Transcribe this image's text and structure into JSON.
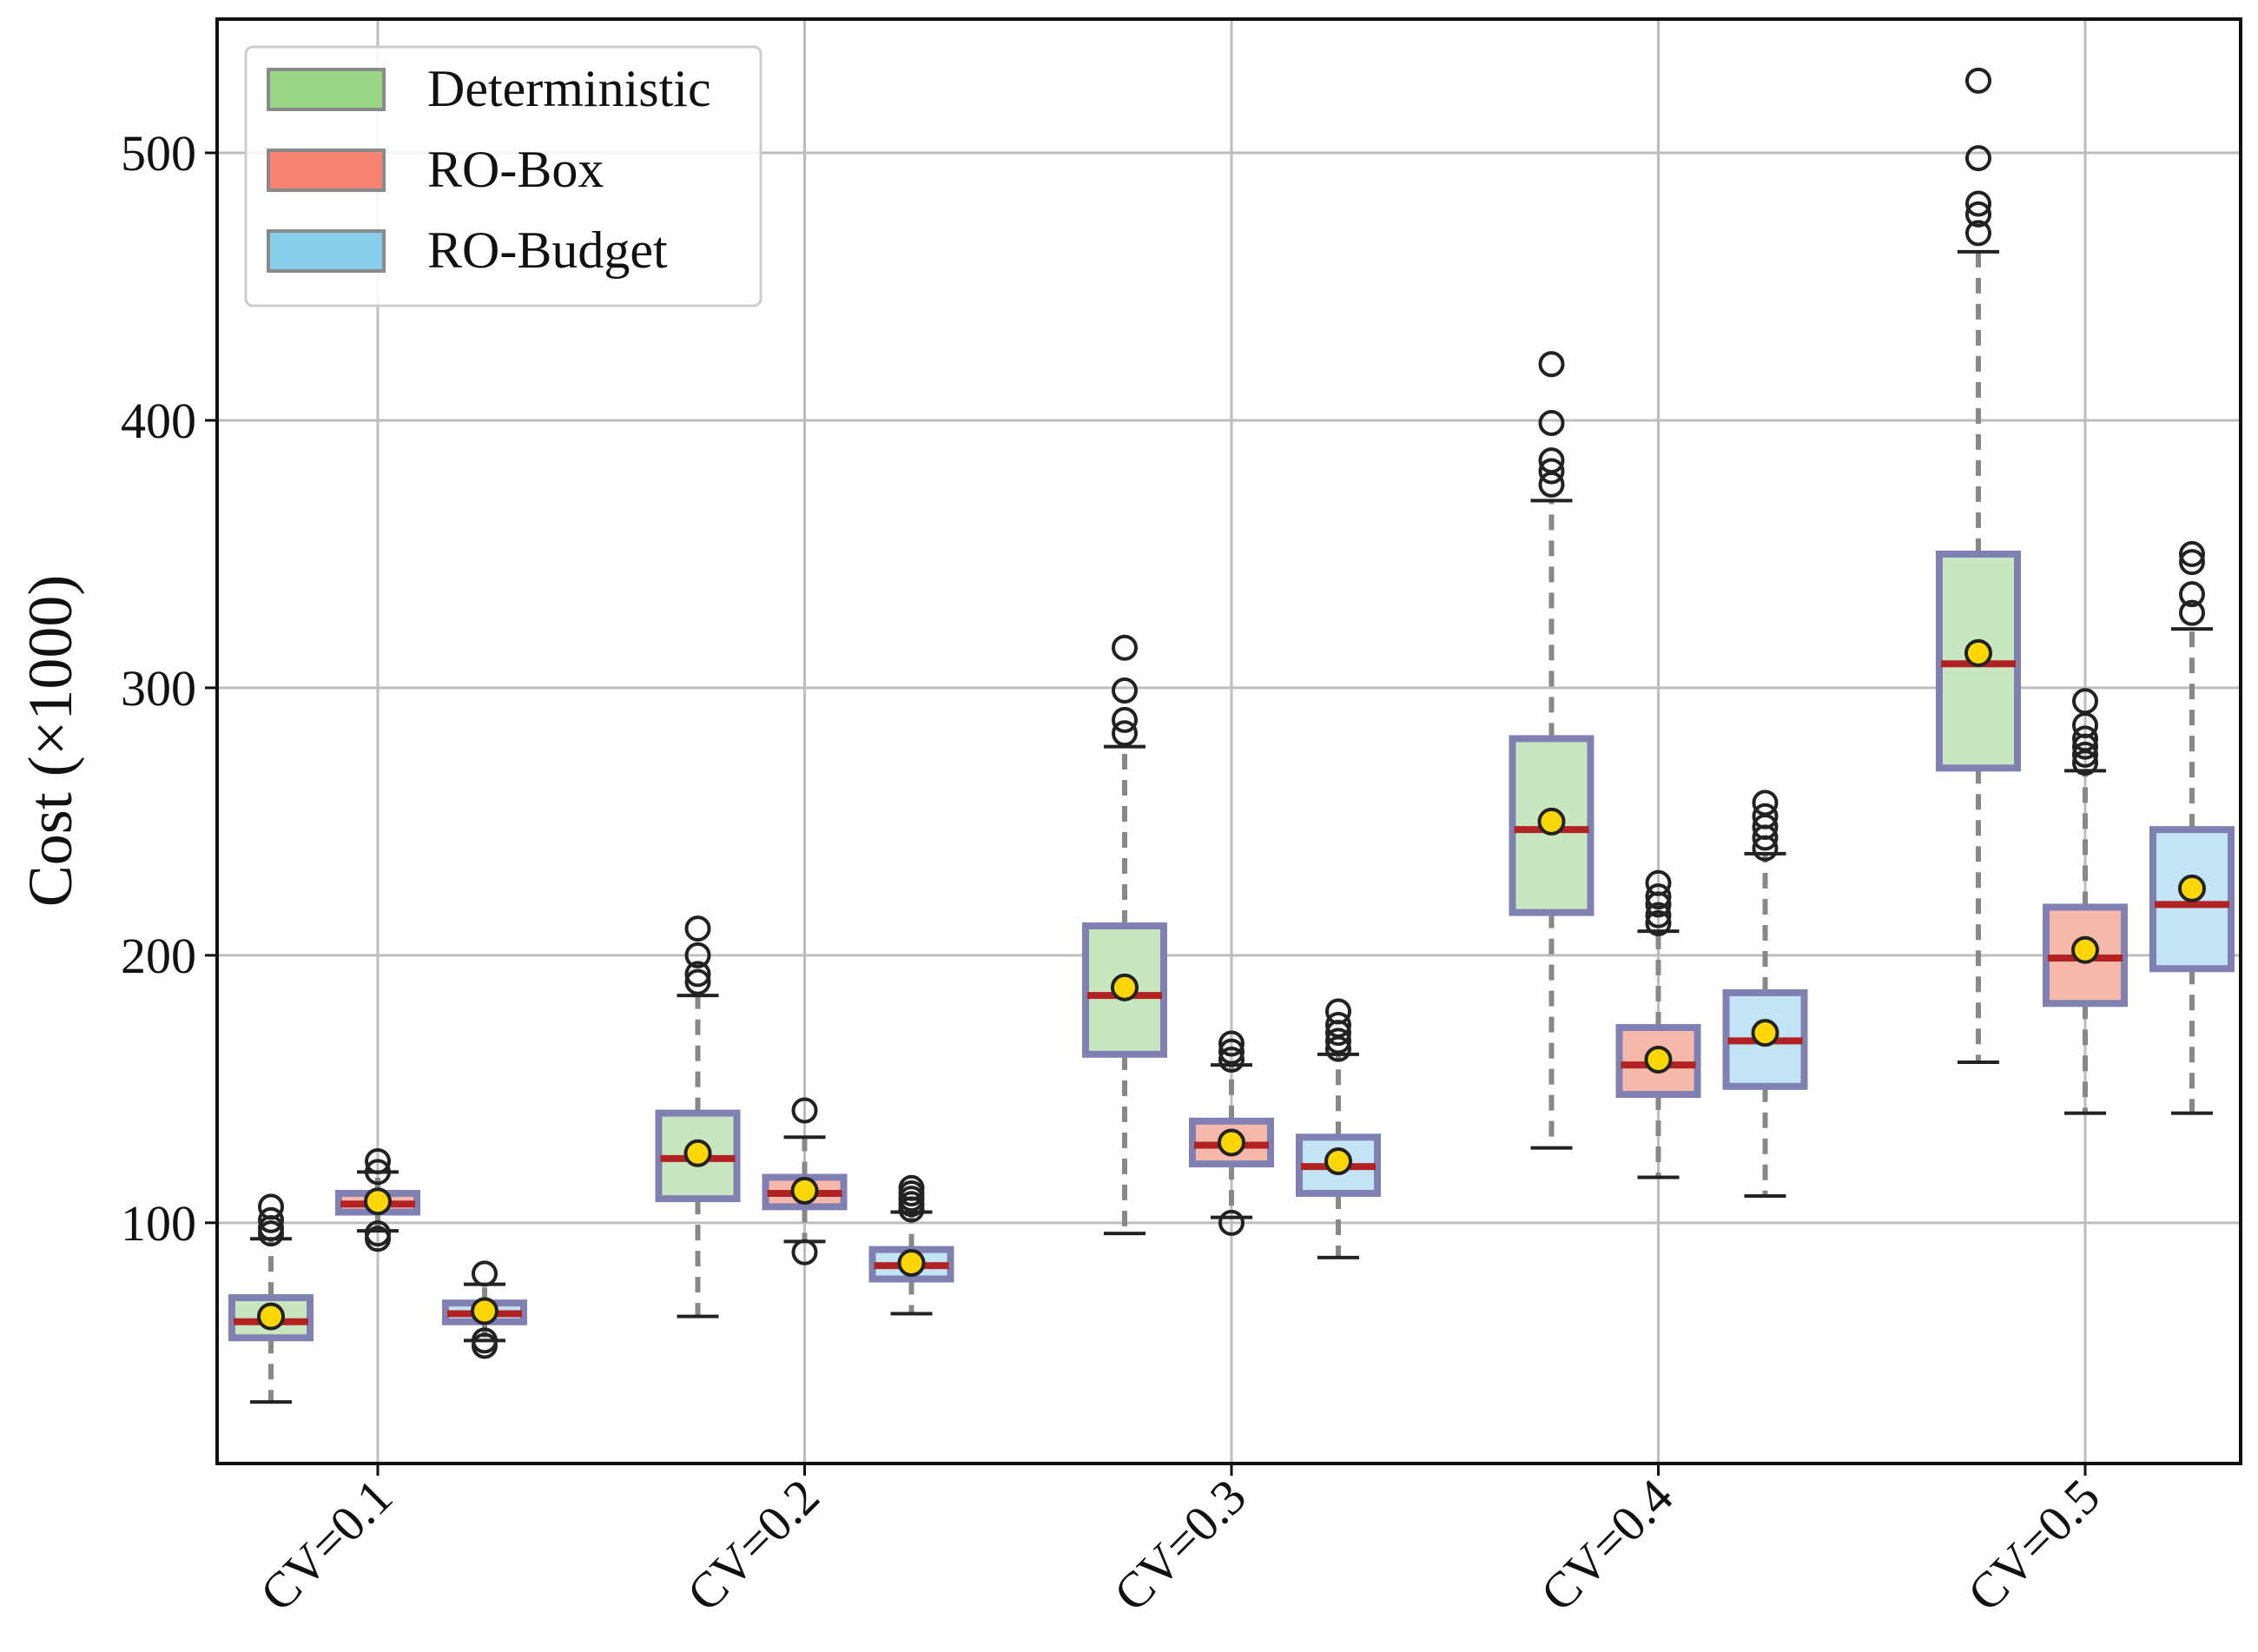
{
  "chart_data": {
    "type": "boxplot",
    "title": "",
    "xlabel": "",
    "ylabel": "Cost (×1000)",
    "ylim": [
      10,
      550
    ],
    "yticks": [
      100,
      200,
      300,
      400,
      500
    ],
    "categories": [
      "CV=0.1",
      "CV=0.2",
      "CV=0.3",
      "CV=0.4",
      "CV=0.5"
    ],
    "grid": true,
    "legend_position": "top-left",
    "colors": {
      "box_edge": "#8080b3",
      "median": "#b22222",
      "mean_marker": "#ffd700",
      "whisker": "#888888",
      "cap": "#222222",
      "grid": "#bdbdbd"
    },
    "series": [
      {
        "name": "Deterministic",
        "fill": "#c8e6c0",
        "legend_fill": "#9ad485",
        "boxes": [
          {
            "category": "CV=0.1",
            "whislo": 33,
            "q1": 57,
            "med": 63,
            "q3": 72,
            "whishi": 94,
            "mean": 65,
            "fliers": [
              96,
              98,
              101,
              106
            ]
          },
          {
            "category": "CV=0.2",
            "whislo": 65,
            "q1": 109,
            "med": 124,
            "q3": 141,
            "whishi": 185,
            "mean": 126,
            "fliers": [
              190,
              193,
              200,
              210
            ]
          },
          {
            "category": "CV=0.3",
            "whislo": 96,
            "q1": 163,
            "med": 185,
            "q3": 211,
            "whishi": 278,
            "mean": 188,
            "fliers": [
              283,
              288,
              299,
              315
            ]
          },
          {
            "category": "CV=0.4",
            "whislo": 128,
            "q1": 216,
            "med": 247,
            "q3": 281,
            "whishi": 370,
            "mean": 250,
            "fliers": [
              376,
              381,
              385,
              399,
              421
            ]
          },
          {
            "category": "CV=0.5",
            "whislo": 160,
            "q1": 270,
            "med": 309,
            "q3": 350,
            "whishi": 463,
            "mean": 313,
            "fliers": [
              470,
              477,
              481,
              498,
              527
            ]
          }
        ]
      },
      {
        "name": "RO-Box",
        "fill": "#f7b8ac",
        "legend_fill": "#f88272",
        "boxes": [
          {
            "category": "CV=0.1",
            "whislo": 97,
            "q1": 104,
            "med": 107,
            "q3": 111,
            "whishi": 119,
            "mean": 108,
            "fliers": [
              94,
              96,
              119,
              123
            ]
          },
          {
            "category": "CV=0.2",
            "whislo": 93,
            "q1": 106,
            "med": 111,
            "q3": 117,
            "whishi": 132,
            "mean": 112,
            "fliers": [
              89,
              142
            ]
          },
          {
            "category": "CV=0.3",
            "whislo": 102,
            "q1": 122,
            "med": 129,
            "q3": 138,
            "whishi": 159,
            "mean": 130,
            "fliers": [
              100,
              161,
              164,
              167
            ]
          },
          {
            "category": "CV=0.4",
            "whislo": 117,
            "q1": 148,
            "med": 159,
            "q3": 173,
            "whishi": 209,
            "mean": 161,
            "fliers": [
              212,
              215,
              219,
              222,
              227
            ]
          },
          {
            "category": "CV=0.5",
            "whislo": 141,
            "q1": 182,
            "med": 199,
            "q3": 218,
            "whishi": 269,
            "mean": 202,
            "fliers": [
              272,
              275,
              278,
              281,
              286,
              295
            ]
          }
        ]
      },
      {
        "name": "RO-Budget",
        "fill": "#c2e4f5",
        "legend_fill": "#87ceeb",
        "boxes": [
          {
            "category": "CV=0.1",
            "whislo": 56,
            "q1": 63,
            "med": 66,
            "q3": 70,
            "whishi": 77,
            "mean": 67,
            "fliers": [
              54,
              56,
              81
            ]
          },
          {
            "category": "CV=0.2",
            "whislo": 66,
            "q1": 79,
            "med": 84,
            "q3": 90,
            "whishi": 104,
            "mean": 85,
            "fliers": [
              105,
              107,
              109,
              111,
              113
            ]
          },
          {
            "category": "CV=0.3",
            "whislo": 87,
            "q1": 111,
            "med": 121,
            "q3": 132,
            "whishi": 163,
            "mean": 123,
            "fliers": [
              165,
              168,
              171,
              174,
              179
            ]
          },
          {
            "category": "CV=0.4",
            "whislo": 110,
            "q1": 151,
            "med": 168,
            "q3": 186,
            "whishi": 238,
            "mean": 171,
            "fliers": [
              240,
              244,
              248,
              252,
              257
            ]
          },
          {
            "category": "CV=0.5",
            "whislo": 141,
            "q1": 195,
            "med": 219,
            "q3": 247,
            "whishi": 322,
            "mean": 225,
            "fliers": [
              328,
              335,
              347,
              350
            ]
          }
        ]
      }
    ]
  }
}
